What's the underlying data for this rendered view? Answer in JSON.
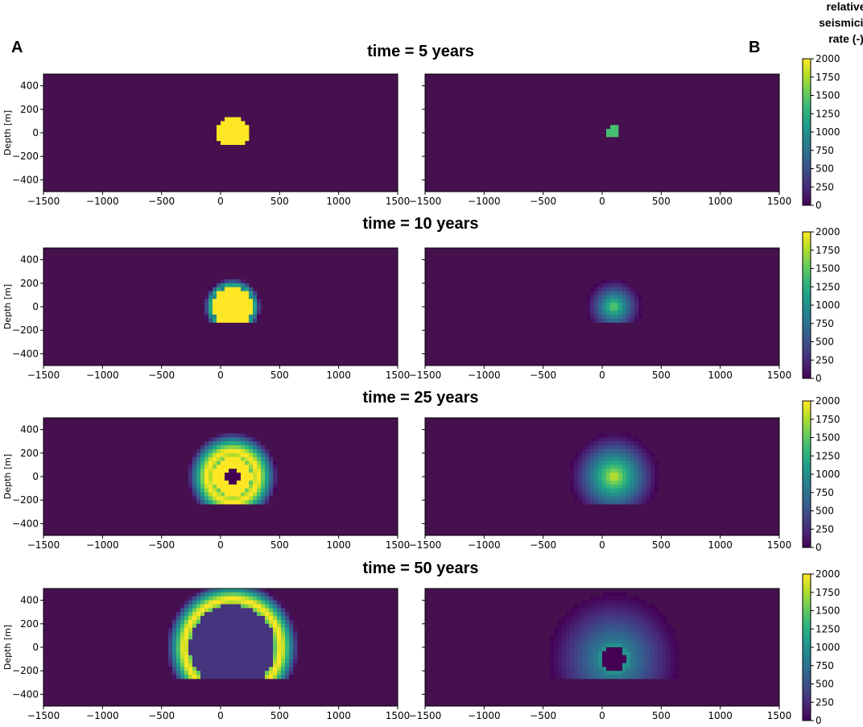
{
  "figure": {
    "panel_labels": [
      "A",
      "B"
    ],
    "colorbar_title": [
      "relative",
      "seismicity",
      "rate (-)"
    ],
    "colors": {
      "background_rate": "#46104f",
      "viridis_stops": [
        "#440154",
        "#482878",
        "#3e4989",
        "#31688e",
        "#26828e",
        "#1f9e89",
        "#35b779",
        "#6ece58",
        "#b5de2b",
        "#fde725"
      ]
    }
  },
  "chart_data": [
    {
      "type": "heatmap",
      "title": "time = 5 years",
      "x_ticks": [
        -1500,
        -1000,
        -500,
        0,
        500,
        1000,
        1500
      ],
      "y_ticks": [
        400,
        200,
        0,
        -200,
        -400
      ],
      "xlim": [
        -1500,
        1500
      ],
      "ylim": [
        -500,
        500
      ],
      "ylabel": "Depth [m]",
      "colorbar_ticks": [
        2000,
        1750,
        1500,
        1250,
        1000,
        750,
        500,
        250,
        0
      ],
      "clim": [
        0,
        2000
      ],
      "panel_A": {
        "center_x": 100,
        "center_y": 0,
        "front_radius": 140,
        "bottom_depth": -100,
        "shell_width": 0,
        "shell_peak_rate": 0,
        "core_rate": 2000,
        "inner_hole_radius": 0
      },
      "panel_B": {
        "center_x": 100,
        "center_y": 0,
        "front_radius": 55,
        "bottom_depth": -40,
        "shell_width": 0,
        "shell_peak_rate": 0,
        "core_rate": 1400,
        "inner_hole_radius": 0
      }
    },
    {
      "type": "heatmap",
      "title": "time = 10 years",
      "x_ticks": [
        -1500,
        -1000,
        -500,
        0,
        500,
        1000,
        1500
      ],
      "y_ticks": [
        400,
        200,
        0,
        -200,
        -400
      ],
      "xlim": [
        -1500,
        1500
      ],
      "ylim": [
        -500,
        500
      ],
      "ylabel": "Depth [m]",
      "colorbar_ticks": [
        2000,
        1750,
        1500,
        1250,
        1000,
        750,
        500,
        250,
        0
      ],
      "clim": [
        0,
        2000
      ],
      "panel_A": {
        "center_x": 100,
        "center_y": 0,
        "front_radius": 240,
        "bottom_depth": -140,
        "shell_width": 70,
        "shell_peak_rate": 1100,
        "core_rate": 2000,
        "inner_hole_radius": 0
      },
      "panel_B": {
        "center_x": 100,
        "center_y": 0,
        "front_radius": 240,
        "bottom_depth": -140,
        "shell_width": 240,
        "shell_peak_rate": 0,
        "core_rate": 1400,
        "inner_hole_radius": 0
      }
    },
    {
      "type": "heatmap",
      "title": "time = 25 years",
      "x_ticks": [
        -1500,
        -1000,
        -500,
        0,
        500,
        1000,
        1500
      ],
      "y_ticks": [
        400,
        200,
        0,
        -200,
        -400
      ],
      "xlim": [
        -1500,
        1500
      ],
      "ylim": [
        -500,
        500
      ],
      "ylabel": "Depth [m]",
      "colorbar_ticks": [
        2000,
        1750,
        1500,
        1250,
        1000,
        750,
        500,
        250,
        0
      ],
      "clim": [
        0,
        2000
      ],
      "panel_A": {
        "center_x": 100,
        "center_y": 0,
        "front_radius": 380,
        "bottom_depth": -230,
        "shell_width": 220,
        "shell_peak_rate": 2000,
        "core_rate": 2000,
        "inner_hole_radius": 60
      },
      "panel_B": {
        "center_x": 100,
        "center_y": 0,
        "front_radius": 380,
        "bottom_depth": -230,
        "shell_width": 380,
        "shell_peak_rate": 0,
        "core_rate": 1700,
        "inner_hole_radius": 0
      }
    },
    {
      "type": "heatmap",
      "title": "time = 50 years",
      "x_ticks": [
        -1500,
        -1000,
        -500,
        0,
        500,
        1000,
        1500
      ],
      "y_ticks": [
        400,
        200,
        0,
        -200,
        -400
      ],
      "xlim": [
        -1500,
        1500
      ],
      "ylim": [
        -500,
        500
      ],
      "ylabel": "Depth [m]",
      "colorbar_ticks": [
        2000,
        1750,
        1500,
        1250,
        1000,
        750,
        500,
        250,
        0
      ],
      "clim": [
        0,
        2000
      ],
      "panel_A": {
        "center_x": 100,
        "center_y": 0,
        "front_radius": 560,
        "bottom_depth": -250,
        "shell_width": 200,
        "shell_peak_rate": 2000,
        "core_rate": 300,
        "inner_hole_radius": 0
      },
      "panel_B": {
        "center_x": 100,
        "center_y": -100,
        "front_radius": 560,
        "bottom_depth": -250,
        "shell_width": 420,
        "shell_peak_rate": 0,
        "core_rate": 1000,
        "inner_hole_radius": 100
      }
    }
  ]
}
